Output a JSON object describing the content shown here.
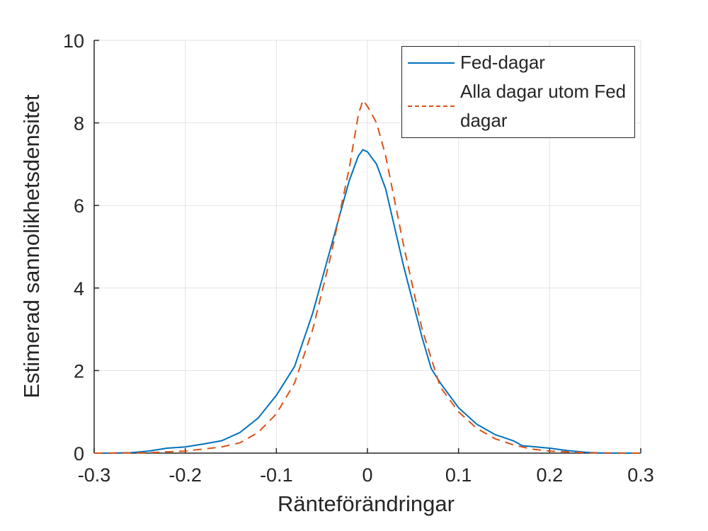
{
  "chart_data": {
    "type": "line",
    "xlabel": "Ränteförändringar",
    "ylabel": "Estimerad sannolikhetsdensitet",
    "xlim": [
      -0.3,
      0.3
    ],
    "ylim": [
      0,
      10
    ],
    "xticks": [
      -0.3,
      -0.2,
      -0.1,
      0,
      0.1,
      0.2,
      0.3
    ],
    "yticks": [
      0,
      2,
      4,
      6,
      8,
      10
    ],
    "grid": true,
    "legend": "top-right",
    "series": [
      {
        "name": "Fed-dagar",
        "color": "#0072bd",
        "dash": "solid",
        "x": [
          -0.3,
          -0.28,
          -0.26,
          -0.24,
          -0.22,
          -0.2,
          -0.18,
          -0.16,
          -0.14,
          -0.12,
          -0.1,
          -0.08,
          -0.06,
          -0.04,
          -0.02,
          -0.01,
          -0.005,
          0,
          0.01,
          0.02,
          0.04,
          0.06,
          0.07,
          0.08,
          0.1,
          0.12,
          0.14,
          0.16,
          0.17,
          0.2,
          0.22,
          0.24,
          0.26,
          0.3
        ],
        "values": [
          0,
          0,
          0.01,
          0.05,
          0.12,
          0.15,
          0.22,
          0.3,
          0.5,
          0.85,
          1.4,
          2.1,
          3.4,
          5.0,
          6.6,
          7.2,
          7.35,
          7.3,
          7.0,
          6.4,
          4.5,
          2.8,
          2.05,
          1.7,
          1.1,
          0.7,
          0.45,
          0.3,
          0.18,
          0.12,
          0.06,
          0.02,
          0,
          0
        ]
      },
      {
        "name": "Alla dagar utom Fed dagar",
        "color": "#d95319",
        "dash": "dashed",
        "x": [
          -0.3,
          -0.24,
          -0.2,
          -0.18,
          -0.16,
          -0.14,
          -0.12,
          -0.1,
          -0.08,
          -0.06,
          -0.04,
          -0.02,
          -0.01,
          -0.005,
          0,
          0.01,
          0.02,
          0.04,
          0.06,
          0.08,
          0.1,
          0.12,
          0.14,
          0.16,
          0.18,
          0.2,
          0.24,
          0.3
        ],
        "values": [
          0,
          0.01,
          0.05,
          0.1,
          0.15,
          0.25,
          0.5,
          0.95,
          1.7,
          3.0,
          4.8,
          6.9,
          8.2,
          8.55,
          8.4,
          8.0,
          7.2,
          5.0,
          3.0,
          1.6,
          1.0,
          0.6,
          0.35,
          0.2,
          0.1,
          0.05,
          0.01,
          0
        ]
      }
    ]
  }
}
